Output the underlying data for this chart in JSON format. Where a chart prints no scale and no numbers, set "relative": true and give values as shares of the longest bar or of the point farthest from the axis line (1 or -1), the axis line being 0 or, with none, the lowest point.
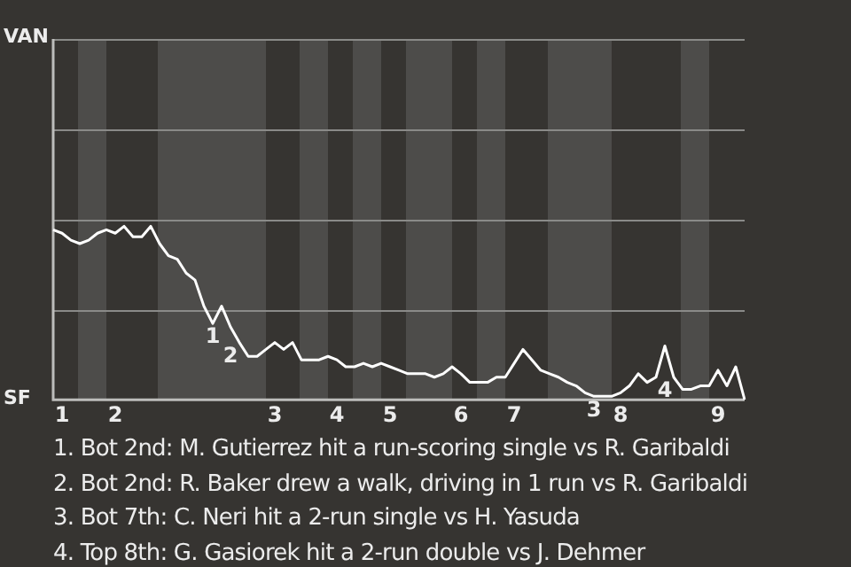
{
  "chart_data": {
    "type": "line",
    "marker": "none",
    "legend": false,
    "relative": true,
    "ref_lines": [
      {
        "axis": "y",
        "value": 0.52,
        "color": "#8a8a88"
      },
      {
        "axis": "y",
        "value": 1.04,
        "color": "#8a8a88"
      },
      {
        "axis": "y",
        "value": 1.56,
        "color": "#8a8a88"
      },
      {
        "axis": "y",
        "value": 2.08,
        "color": "#8a8a88"
      }
    ],
    "categories": [
      null,
      "1",
      null,
      null,
      null,
      null,
      null,
      "2",
      null,
      null,
      null,
      null,
      null,
      null,
      null,
      null,
      null,
      null,
      null,
      null,
      null,
      null,
      null,
      null,
      null,
      "3",
      null,
      null,
      null,
      null,
      null,
      null,
      "4",
      null,
      null,
      null,
      null,
      null,
      "5",
      null,
      null,
      null,
      null,
      null,
      null,
      null,
      "6",
      null,
      null,
      null,
      null,
      null,
      "7",
      null,
      null,
      null,
      null,
      null,
      null,
      null,
      null,
      null,
      null,
      null,
      "8",
      null,
      null,
      null,
      null,
      null,
      null,
      null,
      null,
      null,
      null,
      "9",
      null,
      null,
      null
    ],
    "series": [
      {
        "color": "#ffffff",
        "values": [
          0.98,
          0.96,
          0.92,
          0.9,
          0.92,
          0.96,
          0.98,
          0.96,
          1,
          0.94,
          0.94,
          1,
          0.9,
          0.83,
          0.81,
          0.73,
          0.69,
          0.54,
          0.44,
          0.54,
          0.42,
          0.33,
          0.25,
          0.25,
          0.29,
          0.33,
          0.29,
          0.33,
          0.23,
          0.23,
          0.23,
          0.25,
          0.23,
          0.19,
          0.19,
          0.21,
          0.19,
          0.21,
          0.19,
          0.17,
          0.15,
          0.15,
          0.15,
          0.13,
          0.15,
          0.19,
          0.15,
          0.1,
          0.1,
          0.1,
          0.13,
          0.13,
          0.21,
          0.29,
          0.23,
          0.17,
          0.15,
          0.13,
          0.1,
          0.08,
          0.04,
          0.02,
          0.02,
          0.02,
          0.04,
          0.08,
          0.15,
          0.1,
          0.13,
          0.31,
          0.13,
          0.06,
          0.06,
          0.08,
          0.08,
          0.17,
          0.08,
          0.19,
          0
        ]
      }
    ],
    "annotations": [
      "VAN",
      "SF",
      {
        "text": "1",
        "y": 0.44
      },
      {
        "text": "2",
        "y": 0.42
      },
      {
        "text": "3",
        "y": 0.02
      },
      {
        "text": "4",
        "y": 0.31
      },
      "1. Bot 2nd: M. Gutierrez hit a run-scoring single vs R. Garibaldi",
      "2. Bot 2nd: R. Baker drew a walk, driving in 1 run vs R. Garibaldi",
      "3. Bot 7th: C. Neri hit a 2-run single vs H. Yasuda",
      "4. Top 8th: G. Gasiorek hit a 2-run double vs J. Dehmer"
    ]
  }
}
